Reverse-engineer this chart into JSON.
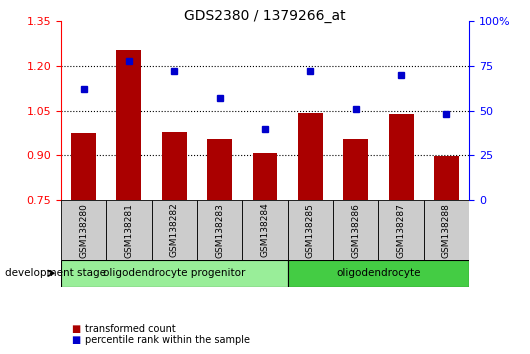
{
  "title": "GDS2380 / 1379266_at",
  "samples": [
    "GSM138280",
    "GSM138281",
    "GSM138282",
    "GSM138283",
    "GSM138284",
    "GSM138285",
    "GSM138286",
    "GSM138287",
    "GSM138288"
  ],
  "transformed_count": [
    0.975,
    1.255,
    0.978,
    0.955,
    0.908,
    1.042,
    0.955,
    1.038,
    0.898
  ],
  "percentile_rank": [
    62,
    78,
    72,
    57,
    40,
    72,
    51,
    70,
    48
  ],
  "bar_color": "#aa0000",
  "dot_color": "#0000cc",
  "ylim_left": [
    0.75,
    1.35
  ],
  "ylim_right": [
    0,
    100
  ],
  "yticks_left": [
    0.75,
    0.9,
    1.05,
    1.2,
    1.35
  ],
  "yticks_right": [
    0,
    25,
    50,
    75,
    100
  ],
  "ytick_labels_right": [
    "0",
    "25",
    "50",
    "75",
    "100%"
  ],
  "groups": [
    {
      "label": "oligodendrocyte progenitor",
      "start": 0,
      "end": 4,
      "color": "#99ee99"
    },
    {
      "label": "oligodendrocyte",
      "start": 5,
      "end": 8,
      "color": "#44cc44"
    }
  ],
  "dev_stage_label": "development stage",
  "legend_items": [
    {
      "color": "#aa0000",
      "label": "transformed count"
    },
    {
      "color": "#0000cc",
      "label": "percentile rank within the sample"
    }
  ]
}
